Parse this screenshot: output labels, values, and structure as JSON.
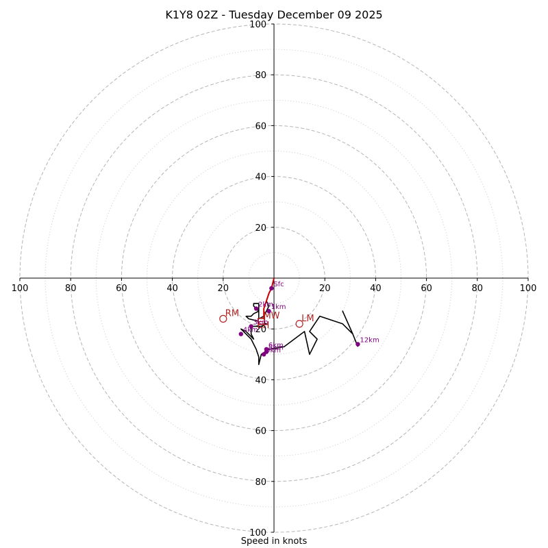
{
  "chart_data": {
    "type": "hodograph",
    "title": "K1Y8 02Z - Tuesday December 09 2025",
    "xlabel": "Speed in knots",
    "axis_range": [
      -100,
      100
    ],
    "rings_major": [
      20,
      40,
      60,
      80,
      100
    ],
    "rings_minor": [
      10,
      30,
      50,
      70,
      90
    ],
    "tick_labels": [
      "20",
      "40",
      "60",
      "80",
      "100"
    ],
    "grid": true,
    "trace": {
      "color": "#000000",
      "points": [
        [
          -1,
          -4
        ],
        [
          -2,
          -6
        ],
        [
          -3,
          -9
        ],
        [
          -2,
          -11
        ],
        [
          -3,
          -13
        ],
        [
          -4,
          -15
        ],
        [
          -6,
          -16
        ],
        [
          -6,
          -10
        ],
        [
          -8,
          -10
        ],
        [
          -8,
          -11
        ],
        [
          -7,
          -12
        ],
        [
          -6,
          -13
        ],
        [
          -8,
          -14
        ],
        [
          -9,
          -15
        ],
        [
          -11,
          -15
        ],
        [
          -10,
          -16
        ],
        [
          -6,
          -17
        ],
        [
          -3,
          -18
        ],
        [
          -5,
          -19
        ],
        [
          -9,
          -19
        ],
        [
          -9,
          -22
        ],
        [
          -8,
          -24
        ],
        [
          -11,
          -21
        ],
        [
          -13,
          -20
        ],
        [
          -11,
          -22
        ],
        [
          -9,
          -24
        ],
        [
          -7,
          -28
        ],
        [
          -6,
          -31
        ],
        [
          -6,
          -34
        ],
        [
          -5,
          -30
        ],
        [
          -2,
          -28
        ],
        [
          4,
          -27
        ],
        [
          12,
          -21
        ],
        [
          14,
          -30
        ],
        [
          17,
          -24
        ],
        [
          14,
          -21
        ],
        [
          18,
          -15
        ],
        [
          27,
          -18
        ],
        [
          31,
          -22
        ],
        [
          27,
          -13
        ],
        [
          31,
          -22
        ],
        [
          33,
          -27
        ]
      ]
    },
    "early_segment": {
      "color": "#cc0000",
      "points": [
        [
          0,
          0
        ],
        [
          -1,
          -4
        ],
        [
          -2,
          -6
        ],
        [
          -3,
          -9
        ],
        [
          -4,
          -12
        ],
        [
          -4,
          -14
        ],
        [
          -4,
          -16
        ]
      ]
    },
    "levels": [
      {
        "label": "Sfc",
        "u": -1,
        "v": -4
      },
      {
        "label": "1km",
        "u": -2,
        "v": -13
      },
      {
        "label": "2km",
        "u": -7,
        "v": -12
      },
      {
        "label": "3km",
        "u": -9,
        "v": -19
      },
      {
        "label": "4km",
        "u": -13,
        "v": -22
      },
      {
        "label": "6km",
        "u": -3,
        "v": -28
      },
      {
        "label": "8km",
        "u": -3,
        "v": -29
      },
      {
        "label": "9km",
        "u": -4,
        "v": -30
      },
      {
        "label": "12km",
        "u": 33,
        "v": -26
      }
    ],
    "level_color": "#800080",
    "storm_markers": [
      {
        "label": "RM",
        "u": -20,
        "v": -16
      },
      {
        "label": "LM",
        "u": 10,
        "v": -18
      },
      {
        "label": "MW",
        "u": -5,
        "v": -17
      },
      {
        "label": "EH",
        "u": -5,
        "v": -17
      }
    ],
    "marker_color": "#b22222"
  }
}
